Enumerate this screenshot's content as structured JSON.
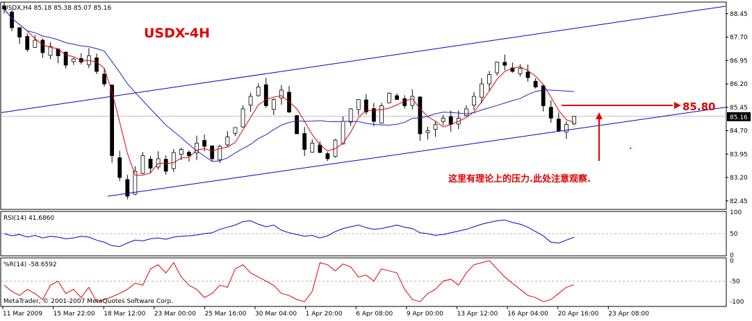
{
  "window": {
    "symbol_info": "USDX,H4  85.18 85.38 85.07 85.16",
    "title": "USDX-4H",
    "copyright": "MetaTrader, © 2001-2007 MetaQuotes Software Corp."
  },
  "annotations": {
    "price_label": "85.80",
    "note": "这里有理论上的压力.此处注意观察."
  },
  "colors": {
    "background": "#ffffff",
    "frame": "#000000",
    "candle": "#000000",
    "channel_line": "#0000cc",
    "ma_fast": "#e00000",
    "ma_slow": "#2222cc",
    "annotation": "#e00000",
    "rsi_line": "#0000cc",
    "wpr_line": "#e00000",
    "current_price_bg": "#000000",
    "current_price_text": "#ffffff"
  },
  "chart_data": [
    {
      "type": "candlestick",
      "title": "USDX-4H",
      "symbol": "USDX,H4",
      "ohlc_current": {
        "open": 85.18,
        "high": 85.38,
        "low": 85.07,
        "close": 85.16
      },
      "current_price": 85.16,
      "resistance_level": 85.8,
      "ylim": [
        82.2,
        88.8
      ],
      "y_ticks": [
        82.45,
        83.2,
        83.95,
        84.7,
        85.45,
        86.2,
        86.95,
        87.7,
        88.45
      ],
      "x_tick_labels": [
        "11 Mar 2009",
        "15 Mar 22:00",
        "18 Mar 12:00",
        "23 Mar 00:00",
        "25 Mar 16:00",
        "30 Mar 04:00",
        "1 Apr 20:00",
        "6 Apr 08:00",
        "9 Apr 00:00",
        "13 Apr 12:00",
        "16 Apr 04:00",
        "20 Apr 16:00",
        "23 Apr 08:00"
      ],
      "close_path": [
        88.6,
        88.0,
        87.7,
        87.3,
        87.6,
        87.2,
        87.4,
        87.1,
        86.8,
        87.0,
        86.9,
        87.1,
        86.6,
        86.2,
        83.9,
        83.2,
        82.6,
        83.4,
        83.9,
        83.5,
        83.8,
        83.4,
        84.0,
        84.1,
        83.9,
        84.3,
        84.2,
        83.8,
        84.2,
        84.5,
        84.8,
        85.4,
        85.8,
        86.1,
        85.5,
        85.7,
        86.0,
        85.3,
        84.6,
        84.1,
        84.3,
        84.0,
        83.8,
        84.4,
        85.0,
        85.4,
        85.7,
        85.3,
        85.0,
        85.5,
        85.9,
        85.7,
        85.5,
        85.8,
        84.6,
        84.7,
        84.9,
        85.1,
        84.9,
        85.1,
        85.4,
        85.8,
        86.2,
        86.5,
        86.9,
        86.8,
        86.6,
        86.7,
        86.4,
        86.1,
        85.5,
        85.1,
        84.7,
        84.9,
        85.16
      ],
      "channel": {
        "upper": [
          [
            0,
            85.28
          ],
          [
            1,
            88.69
          ]
        ],
        "lower": [
          [
            0,
            82.65
          ],
          [
            1,
            85.45
          ]
        ]
      }
    },
    {
      "type": "line",
      "title": "RSI(14) 41.6860",
      "current_value": 41.686,
      "ylim": [
        0,
        100
      ],
      "y_ticks": [
        0,
        50,
        100
      ],
      "values": [
        50,
        45,
        48,
        42,
        46,
        40,
        44,
        42,
        38,
        40,
        44,
        42,
        35,
        30,
        22,
        20,
        28,
        35,
        33,
        38,
        40,
        37,
        42,
        44,
        45,
        47,
        50,
        52,
        60,
        65,
        70,
        78,
        80,
        72,
        66,
        70,
        58,
        52,
        48,
        44,
        46,
        40,
        45,
        55,
        62,
        66,
        70,
        64,
        60,
        62,
        66,
        70,
        65,
        62,
        52,
        50,
        46,
        48,
        52,
        56,
        60,
        66,
        72,
        76,
        80,
        82,
        76,
        72,
        65,
        55,
        45,
        30,
        28,
        35,
        41.7
      ]
    },
    {
      "type": "line",
      "title": "%R(14) -58.6592",
      "current_value": -58.6592,
      "ylim": [
        -110,
        5
      ],
      "y_ticks": [
        -100,
        -50,
        0
      ],
      "values": [
        -60,
        -75,
        -85,
        -70,
        -80,
        -95,
        -60,
        -50,
        -80,
        -70,
        -90,
        -65,
        -100,
        -95,
        -88,
        -80,
        -70,
        -55,
        -60,
        -20,
        -10,
        -30,
        -5,
        -40,
        -60,
        -70,
        -90,
        -80,
        -60,
        -65,
        -20,
        -10,
        -30,
        -40,
        -50,
        -60,
        -80,
        -85,
        -95,
        -100,
        -75,
        -5,
        -10,
        -25,
        -8,
        -15,
        -40,
        -35,
        -50,
        -20,
        -25,
        -30,
        -70,
        -95,
        -100,
        -80,
        -70,
        -50,
        -45,
        -60,
        -30,
        -10,
        -5,
        0,
        -20,
        -40,
        -55,
        -70,
        -85,
        -90,
        -100,
        -95,
        -80,
        -65,
        -58.7
      ]
    }
  ]
}
